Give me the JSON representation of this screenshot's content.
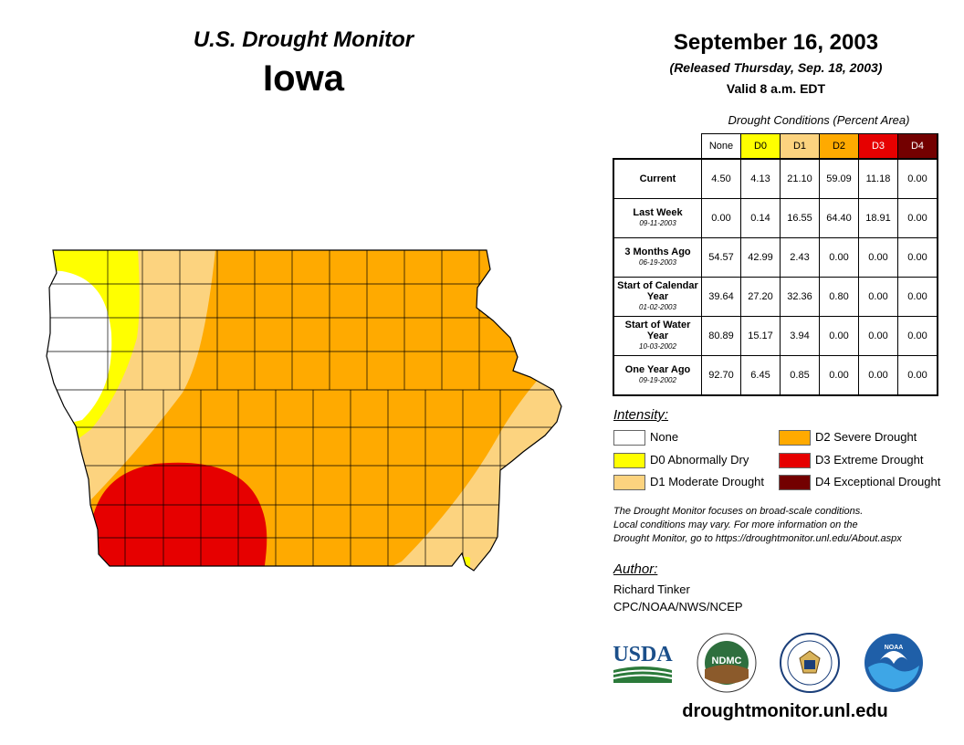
{
  "header": {
    "monitor_title": "U.S. Drought Monitor",
    "state": "Iowa",
    "date": "September 16, 2003",
    "released": "(Released Thursday, Sep. 18, 2003)",
    "valid": "Valid 8 a.m. EDT"
  },
  "table": {
    "caption": "Drought Conditions (Percent Area)",
    "columns": [
      {
        "label": "None",
        "color": "#ffffff",
        "text_color": "#000000"
      },
      {
        "label": "D0",
        "color": "#ffff00",
        "text_color": "#000000"
      },
      {
        "label": "D1",
        "color": "#fcd37f",
        "text_color": "#000000"
      },
      {
        "label": "D2",
        "color": "#ffaa00",
        "text_color": "#000000"
      },
      {
        "label": "D3",
        "color": "#e60000",
        "text_color": "#ffffff"
      },
      {
        "label": "D4",
        "color": "#730000",
        "text_color": "#ffffff"
      }
    ],
    "rows": [
      {
        "label": "Current",
        "sub": "",
        "values": [
          "4.50",
          "4.13",
          "21.10",
          "59.09",
          "11.18",
          "0.00"
        ]
      },
      {
        "label": "Last Week",
        "sub": "09-11-2003",
        "values": [
          "0.00",
          "0.14",
          "16.55",
          "64.40",
          "18.91",
          "0.00"
        ]
      },
      {
        "label": "3 Months Ago",
        "sub": "06-19-2003",
        "values": [
          "54.57",
          "42.99",
          "2.43",
          "0.00",
          "0.00",
          "0.00"
        ]
      },
      {
        "label": "Start of Calendar Year",
        "sub": "01-02-2003",
        "values": [
          "39.64",
          "27.20",
          "32.36",
          "0.80",
          "0.00",
          "0.00"
        ]
      },
      {
        "label": "Start of Water Year",
        "sub": "10-03-2002",
        "values": [
          "80.89",
          "15.17",
          "3.94",
          "0.00",
          "0.00",
          "0.00"
        ]
      },
      {
        "label": "One Year Ago",
        "sub": "09-19-2002",
        "values": [
          "92.70",
          "6.45",
          "0.85",
          "0.00",
          "0.00",
          "0.00"
        ]
      }
    ]
  },
  "legend": {
    "title": "Intensity:",
    "items": [
      {
        "label": "None",
        "color": "#ffffff"
      },
      {
        "label": "D0 Abnormally Dry",
        "color": "#ffff00"
      },
      {
        "label": "D1 Moderate Drought",
        "color": "#fcd37f"
      },
      {
        "label": "D2 Severe Drought",
        "color": "#ffaa00"
      },
      {
        "label": "D3 Extreme Drought",
        "color": "#e60000"
      },
      {
        "label": "D4 Exceptional Drought",
        "color": "#730000"
      }
    ]
  },
  "note": {
    "line1": "The Drought Monitor focuses on broad-scale conditions.",
    "line2": "Local conditions may vary. For more information on the",
    "line3": "Drought Monitor, go to https://droughtmonitor.unl.edu/About.aspx"
  },
  "author": {
    "title": "Author:",
    "name": "Richard Tinker",
    "org": "CPC/NOAA/NWS/NCEP"
  },
  "logos": {
    "usda": "USDA",
    "ndmc": "NDMC",
    "noaa": "NOAA"
  },
  "website": "droughtmonitor.unl.edu"
}
